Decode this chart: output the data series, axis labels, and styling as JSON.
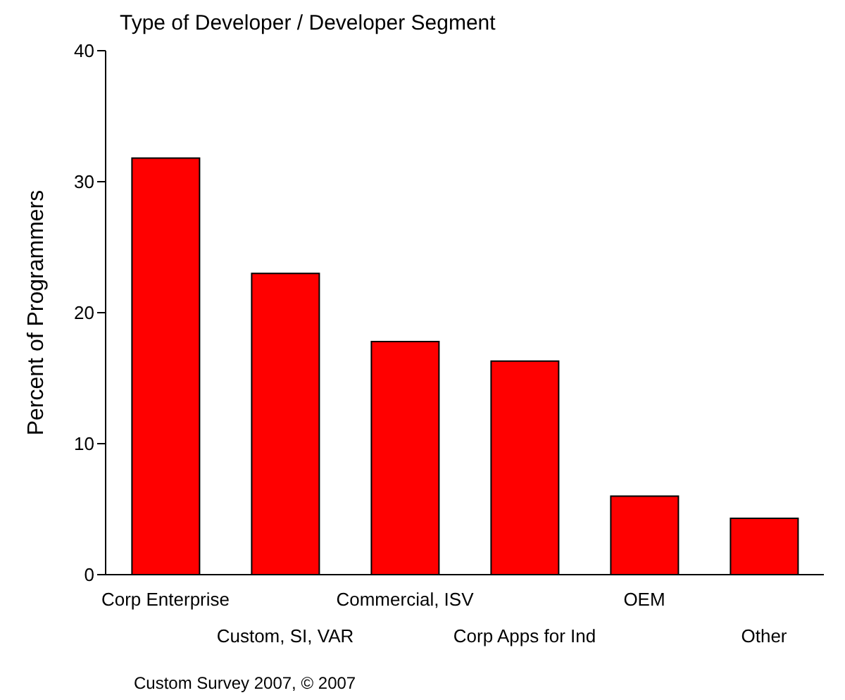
{
  "chart_data": {
    "type": "bar",
    "title": "Type of Developer / Developer Segment",
    "ylabel": "Percent of Programmers",
    "categories": [
      "Corp Enterprise",
      "Custom, SI, VAR",
      "Commercial, ISV",
      "Corp Apps for Ind",
      "OEM",
      "Other"
    ],
    "values": [
      31.8,
      23.0,
      17.8,
      16.3,
      6.0,
      4.3
    ],
    "color": "#ff0000",
    "ylim": [
      0,
      40
    ],
    "yticks": [
      0,
      10,
      20,
      30,
      40
    ],
    "grid": false,
    "legend": false,
    "annotations": [
      "Custom Survey 2007, © 2007"
    ]
  }
}
